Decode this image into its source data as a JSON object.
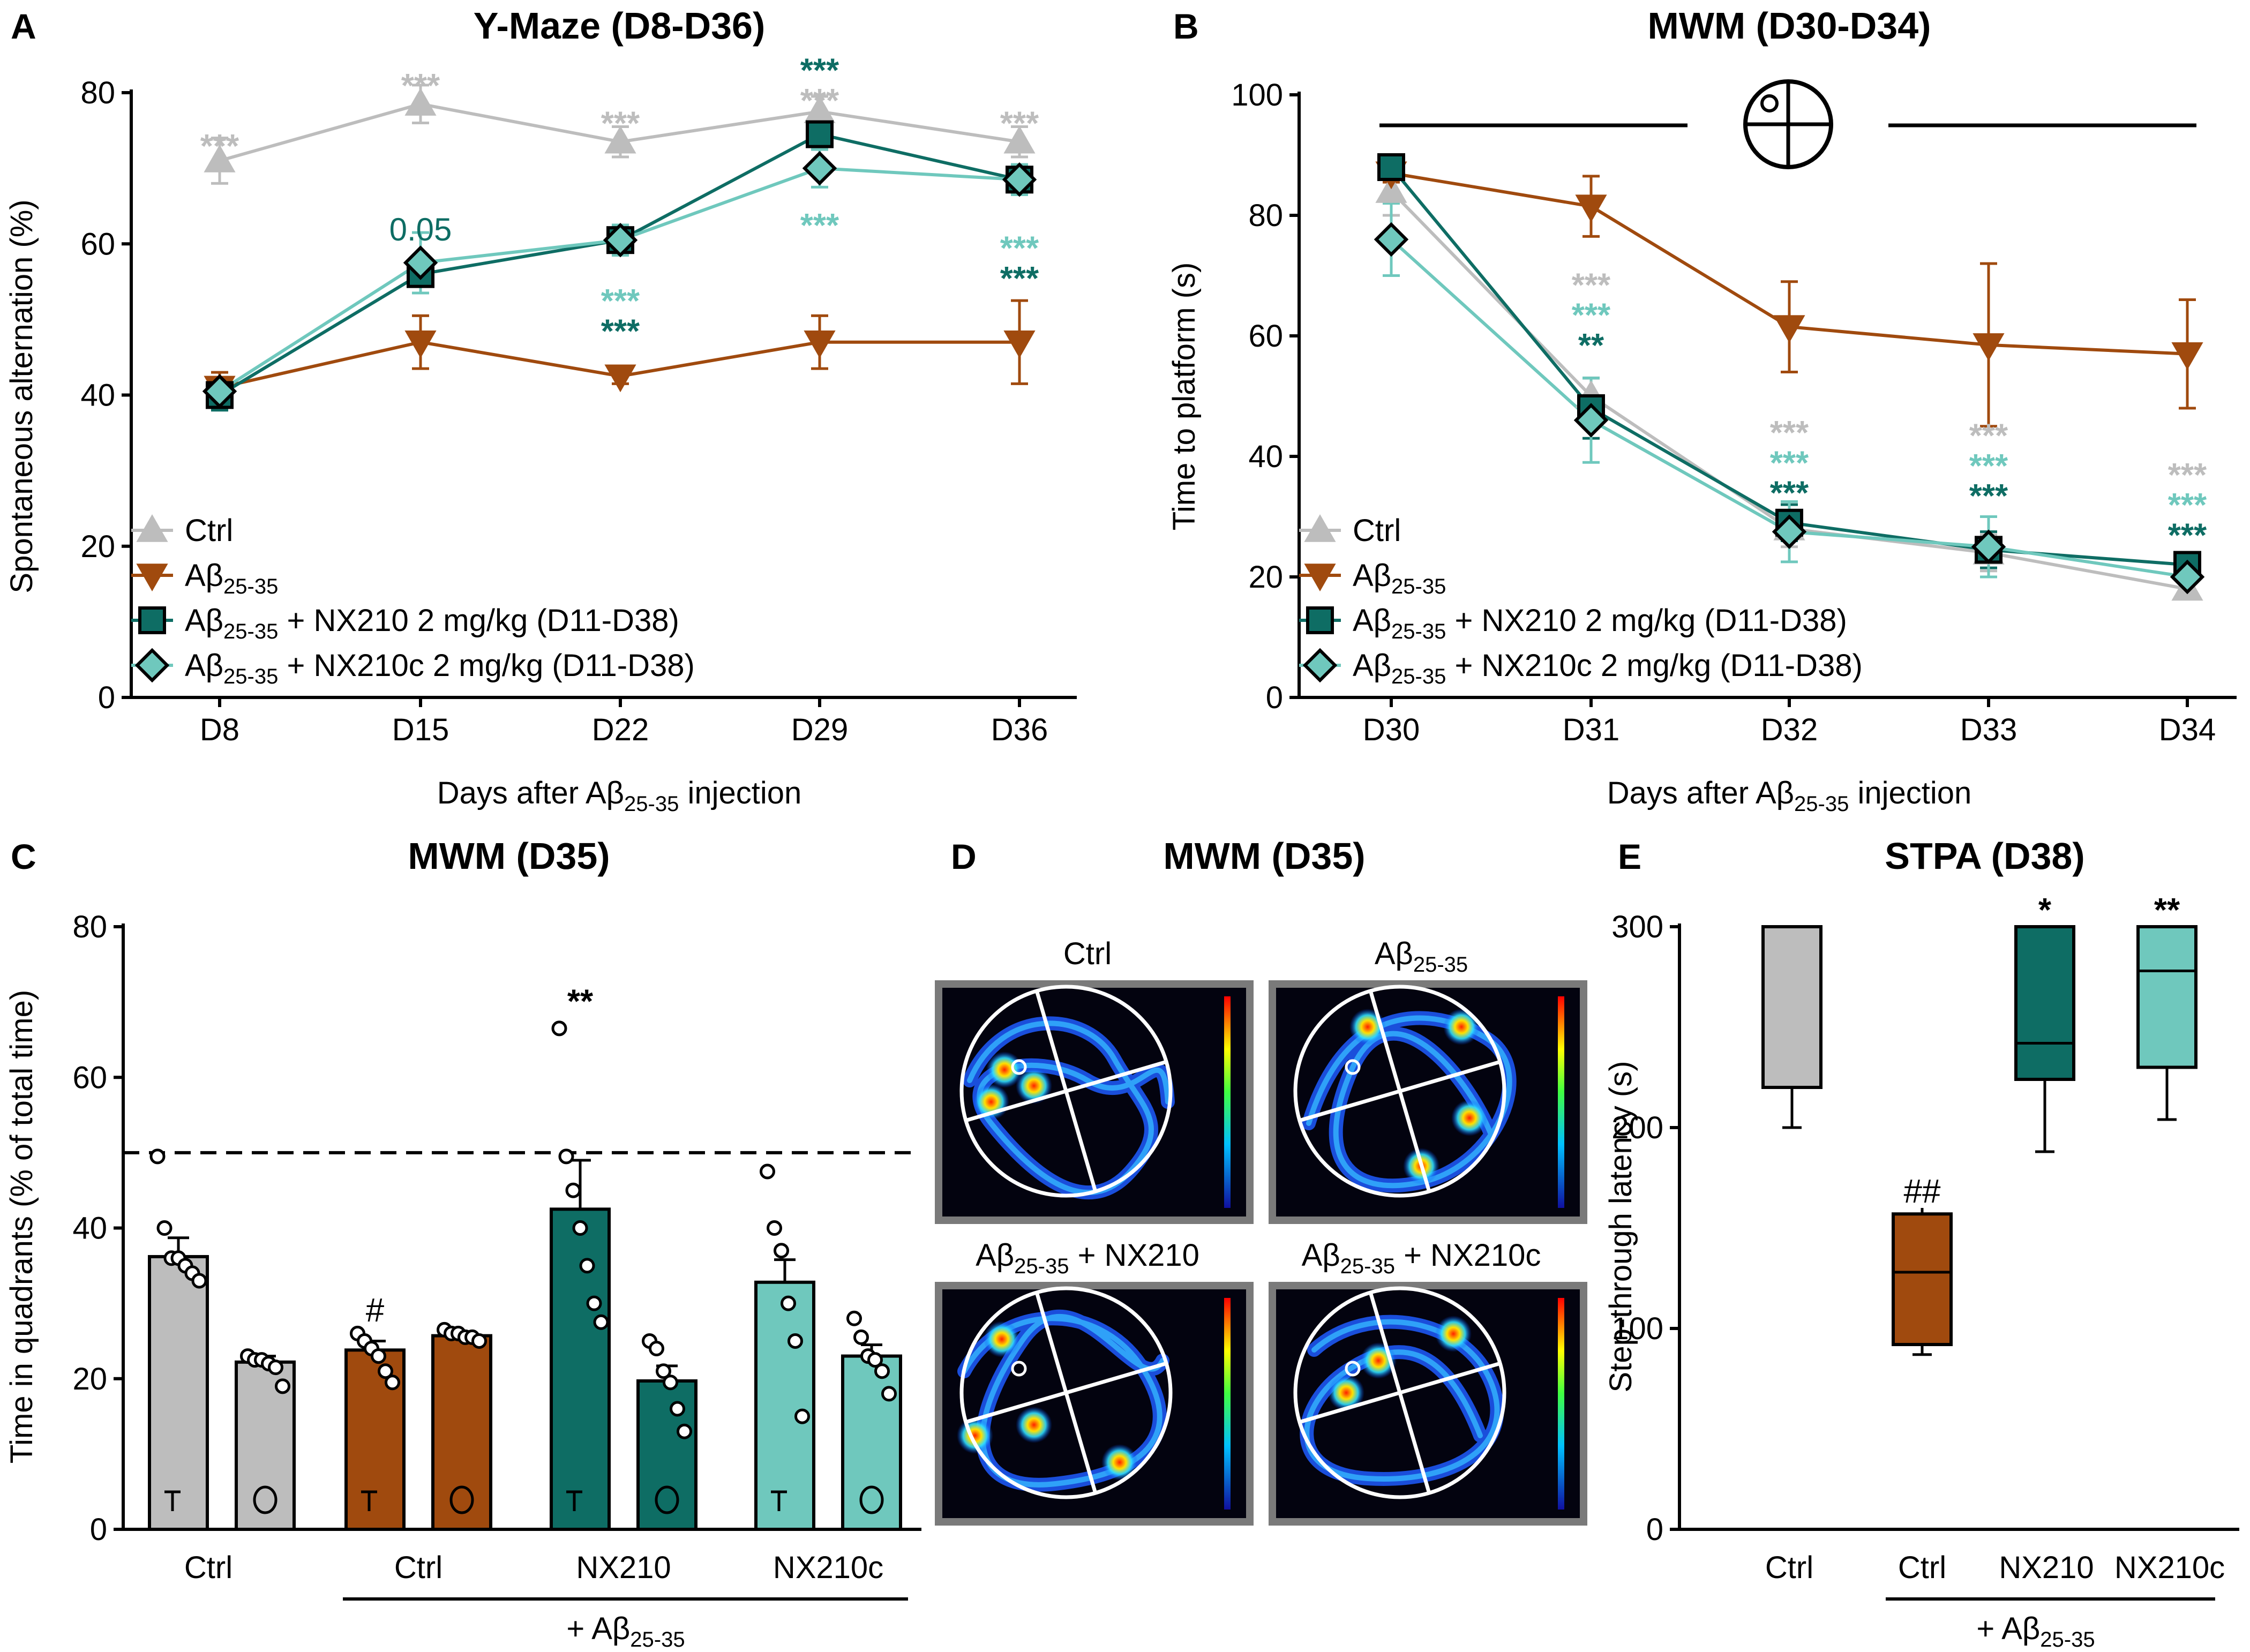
{
  "colors": {
    "ctrl": "#bdbdbd",
    "abeta": "#a04a0e",
    "nx210": "#0e6d64",
    "nx210c": "#6fc8bd",
    "axis": "#000000"
  },
  "subscript": "25-35",
  "panels": {
    "A": {
      "label": "A",
      "title": "Y-Maze (D8-D36)",
      "ylabel": "Spontaneous alternation (%)",
      "xlabel_pre": "Days after Aβ",
      "xlabel_post": " injection"
    },
    "B": {
      "label": "B",
      "title": "MWM (D30-D34)",
      "ylabel": "Time to platform (s)",
      "xlabel_pre": "Days after Aβ",
      "xlabel_post": " injection"
    },
    "C": {
      "label": "C",
      "title": "MWM (D35)",
      "ylabel": "Time in quadrants (% of total time)",
      "group_labels": [
        "Ctrl",
        "Ctrl",
        "NX210",
        "NX210c"
      ],
      "bracket_pre": "+ Aβ"
    },
    "D": {
      "label": "D",
      "title": "MWM (D35)",
      "heatmaps": [
        {
          "name_pre": "Ctrl",
          "name_sub": "",
          "name_post": ""
        },
        {
          "name_pre": "Aβ",
          "name_sub": "25-35",
          "name_post": ""
        },
        {
          "name_pre": "Aβ",
          "name_sub": "25-35",
          "name_post": " + NX210"
        },
        {
          "name_pre": "Aβ",
          "name_sub": "25-35",
          "name_post": " + NX210c"
        }
      ]
    },
    "E": {
      "label": "E",
      "title": "STPA (D38)",
      "ylabel": "Step-through latency (s)",
      "group_labels": [
        "Ctrl",
        "Ctrl",
        "NX210",
        "NX210c"
      ],
      "bracket_pre": "+ Aβ"
    }
  },
  "legend": [
    {
      "key": "ctrl",
      "pre": "Ctrl",
      "sub": "",
      "post": ""
    },
    {
      "key": "abeta",
      "pre": "Aβ",
      "sub": "25-35",
      "post": ""
    },
    {
      "key": "nx210",
      "pre": "Aβ",
      "sub": "25-35",
      "post": " + NX210 2 mg/kg (D11-D38)"
    },
    {
      "key": "nx210c",
      "pre": "Aβ",
      "sub": "25-35",
      "post": " + NX210c 2 mg/kg (D11-D38)"
    }
  ],
  "chart_data": [
    {
      "panel": "A",
      "type": "line",
      "title": "Y-Maze (D8-D36)",
      "ylabel": "Spontaneous alternation (%)",
      "xlabel": "Days after Aβ25-35 injection",
      "categories": [
        "D8",
        "D15",
        "D22",
        "D29",
        "D36"
      ],
      "ylim": [
        0,
        80
      ],
      "yticks": [
        0,
        20,
        40,
        60,
        80
      ],
      "series": [
        {
          "key": "ctrl",
          "name": "Ctrl",
          "marker": "triangle-up",
          "values": [
            71,
            78.5,
            73.5,
            77.5,
            73.5
          ],
          "err": [
            3,
            2.5,
            2,
            2,
            2
          ]
        },
        {
          "key": "abeta",
          "name": "Aβ25-35",
          "marker": "triangle-down",
          "values": [
            41,
            47,
            42.5,
            47,
            47
          ],
          "err": [
            2,
            3.5,
            1,
            3.5,
            5.5
          ]
        },
        {
          "key": "nx210",
          "name": "Aβ25-35 + NX210 2 mg/kg (D11-D38)",
          "marker": "square",
          "values": [
            40,
            56,
            60.5,
            74.5,
            68.5
          ],
          "err": [
            2,
            2.5,
            2,
            2,
            1.5
          ]
        },
        {
          "key": "nx210c",
          "name": "Aβ25-35 + NX210c 2 mg/kg (D11-D38)",
          "marker": "diamond",
          "values": [
            40.5,
            57.5,
            60.5,
            70,
            68.5
          ],
          "err": [
            1.5,
            4,
            2,
            2.5,
            2
          ]
        }
      ],
      "annotations": [
        {
          "text": "***",
          "x": "D8",
          "y": 73,
          "key": "ctrl"
        },
        {
          "text": "***",
          "x": "D15",
          "y": 81,
          "key": "ctrl"
        },
        {
          "text": "***",
          "x": "D22",
          "y": 76,
          "key": "ctrl"
        },
        {
          "text": "***",
          "x": "D29",
          "y": 83,
          "key": "nx210"
        },
        {
          "text": "***",
          "x": "D29",
          "y": 79,
          "key": "ctrl"
        },
        {
          "text": "***",
          "x": "D36",
          "y": 76,
          "key": "ctrl"
        },
        {
          "text": "0.05",
          "x": "D15",
          "y": 62,
          "key": "nx210"
        },
        {
          "text": "***",
          "x": "D22",
          "y": 52.5,
          "key": "nx210c"
        },
        {
          "text": "***",
          "x": "D22",
          "y": 48.5,
          "key": "nx210"
        },
        {
          "text": "***",
          "x": "D29",
          "y": 62.5,
          "key": "nx210c"
        },
        {
          "text": "***",
          "x": "D36",
          "y": 59.5,
          "key": "nx210c"
        },
        {
          "text": "***",
          "x": "D36",
          "y": 55.5,
          "key": "nx210"
        }
      ]
    },
    {
      "panel": "B",
      "type": "line",
      "title": "MWM (D30-D34)",
      "ylabel": "Time to platform (s)",
      "xlabel": "Days after Aβ25-35 injection",
      "categories": [
        "D30",
        "D31",
        "D32",
        "D33",
        "D34"
      ],
      "ylim": [
        0,
        100
      ],
      "yticks": [
        0,
        20,
        40,
        60,
        80,
        100
      ],
      "series": [
        {
          "key": "ctrl",
          "name": "Ctrl",
          "marker": "triangle-up",
          "values": [
            84,
            50,
            28,
            24,
            18
          ],
          "err": [
            4,
            3,
            3,
            3,
            1
          ]
        },
        {
          "key": "abeta",
          "name": "Aβ25-35",
          "marker": "triangle-down",
          "values": [
            87,
            81.5,
            61.5,
            58.5,
            57
          ],
          "err": [
            1.5,
            5,
            7.5,
            13.5,
            9
          ]
        },
        {
          "key": "nx210",
          "name": "Aβ25-35 + NX210 2 mg/kg (D11-D38)",
          "marker": "square",
          "values": [
            88,
            48,
            29,
            24.5,
            22
          ],
          "err": [
            1.5,
            5,
            3,
            3,
            2
          ]
        },
        {
          "key": "nx210c",
          "name": "Aβ25-35 + NX210c 2 mg/kg (D11-D38)",
          "marker": "diamond",
          "values": [
            76,
            46,
            27.5,
            25,
            20
          ],
          "err": [
            6,
            7,
            5,
            5,
            2
          ]
        }
      ],
      "annotations": [
        {
          "text": "***",
          "x": "D31",
          "y": 68.5,
          "key": "ctrl"
        },
        {
          "text": "***",
          "x": "D31",
          "y": 63.5,
          "key": "nx210c"
        },
        {
          "text": "**",
          "x": "D31",
          "y": 58.5,
          "key": "nx210"
        },
        {
          "text": "***",
          "x": "D32",
          "y": 44,
          "key": "ctrl"
        },
        {
          "text": "***",
          "x": "D32",
          "y": 39,
          "key": "nx210c"
        },
        {
          "text": "***",
          "x": "D32",
          "y": 34,
          "key": "nx210"
        },
        {
          "text": "***",
          "x": "D33",
          "y": 43.5,
          "key": "ctrl"
        },
        {
          "text": "***",
          "x": "D33",
          "y": 38.5,
          "key": "nx210c"
        },
        {
          "text": "***",
          "x": "D33",
          "y": 33.5,
          "key": "nx210"
        },
        {
          "text": "***",
          "x": "D34",
          "y": 37,
          "key": "ctrl"
        },
        {
          "text": "***",
          "x": "D34",
          "y": 32,
          "key": "nx210c"
        },
        {
          "text": "***",
          "x": "D34",
          "y": 27,
          "key": "nx210"
        }
      ]
    },
    {
      "panel": "C",
      "type": "bar",
      "title": "MWM (D35)",
      "ylabel": "Time in quadrants (% of total time)",
      "ylim": [
        0,
        80
      ],
      "yticks": [
        0,
        20,
        40,
        60,
        80
      ],
      "reference_line": 50,
      "bars": [
        {
          "group": "Ctrl",
          "key": "ctrl",
          "quadrant": "T",
          "value": 36.2,
          "err": 2.5,
          "points": [
            49.5,
            40,
            36,
            36,
            35,
            34,
            33
          ]
        },
        {
          "group": "Ctrl",
          "key": "ctrl",
          "quadrant": "O",
          "value": 22.2,
          "err": 0.8,
          "points": [
            23,
            22.5,
            22.5,
            22,
            21.5,
            19
          ]
        },
        {
          "group": "Aβ25-35 Ctrl",
          "key": "abeta",
          "quadrant": "T",
          "value": 23.8,
          "err": 1.2,
          "points": [
            26,
            25,
            24,
            23,
            21,
            19.5
          ]
        },
        {
          "group": "Aβ25-35 Ctrl",
          "key": "abeta",
          "quadrant": "O",
          "value": 25.7,
          "err": 0.4,
          "points": [
            26.5,
            26,
            26,
            25.5,
            25.5,
            25
          ]
        },
        {
          "group": "Aβ25-35 NX210",
          "key": "nx210",
          "quadrant": "T",
          "value": 42.5,
          "err": 6.5,
          "points": [
            66.5,
            49.5,
            45,
            40,
            35,
            30,
            27.5
          ]
        },
        {
          "group": "Aβ25-35 NX210",
          "key": "nx210",
          "quadrant": "O",
          "value": 19.7,
          "err": 2,
          "points": [
            25,
            24,
            21,
            19.5,
            16,
            13
          ]
        },
        {
          "group": "Aβ25-35 NX210c",
          "key": "nx210c",
          "quadrant": "T",
          "value": 32.8,
          "err": 3,
          "points": [
            47.5,
            40,
            37,
            30,
            25,
            15
          ]
        },
        {
          "group": "Aβ25-35 NX210c",
          "key": "nx210c",
          "quadrant": "O",
          "value": 23,
          "err": 1.5,
          "points": [
            28,
            25.5,
            23,
            22.5,
            21,
            18
          ]
        }
      ],
      "annotations": [
        {
          "text": "#",
          "bar": 2,
          "y": 29
        },
        {
          "text": "**",
          "bar": 4,
          "y": 70
        }
      ]
    },
    {
      "panel": "E",
      "type": "box",
      "title": "STPA (D38)",
      "ylabel": "Step-through latency (s)",
      "ylim": [
        0,
        300
      ],
      "yticks": [
        0,
        100,
        200,
        300
      ],
      "boxes": [
        {
          "group": "Ctrl",
          "key": "ctrl",
          "min": 200,
          "q1": 220,
          "median": 300,
          "q3": 300,
          "max": 300
        },
        {
          "group": "Aβ25-35 Ctrl",
          "key": "abeta",
          "min": 87,
          "q1": 92,
          "median": 128,
          "q3": 157,
          "max": 160
        },
        {
          "group": "Aβ25-35 NX210",
          "key": "nx210",
          "min": 188,
          "q1": 224,
          "median": 242,
          "q3": 300,
          "max": 300
        },
        {
          "group": "Aβ25-35 NX210c",
          "key": "nx210c",
          "min": 204,
          "q1": 230,
          "median": 278,
          "q3": 300,
          "max": 300
        }
      ],
      "annotations": [
        {
          "text": "##",
          "box": 1,
          "y": 168
        },
        {
          "text": "*",
          "box": 2,
          "y": 308
        },
        {
          "text": "**",
          "box": 3,
          "y": 308
        }
      ]
    }
  ]
}
